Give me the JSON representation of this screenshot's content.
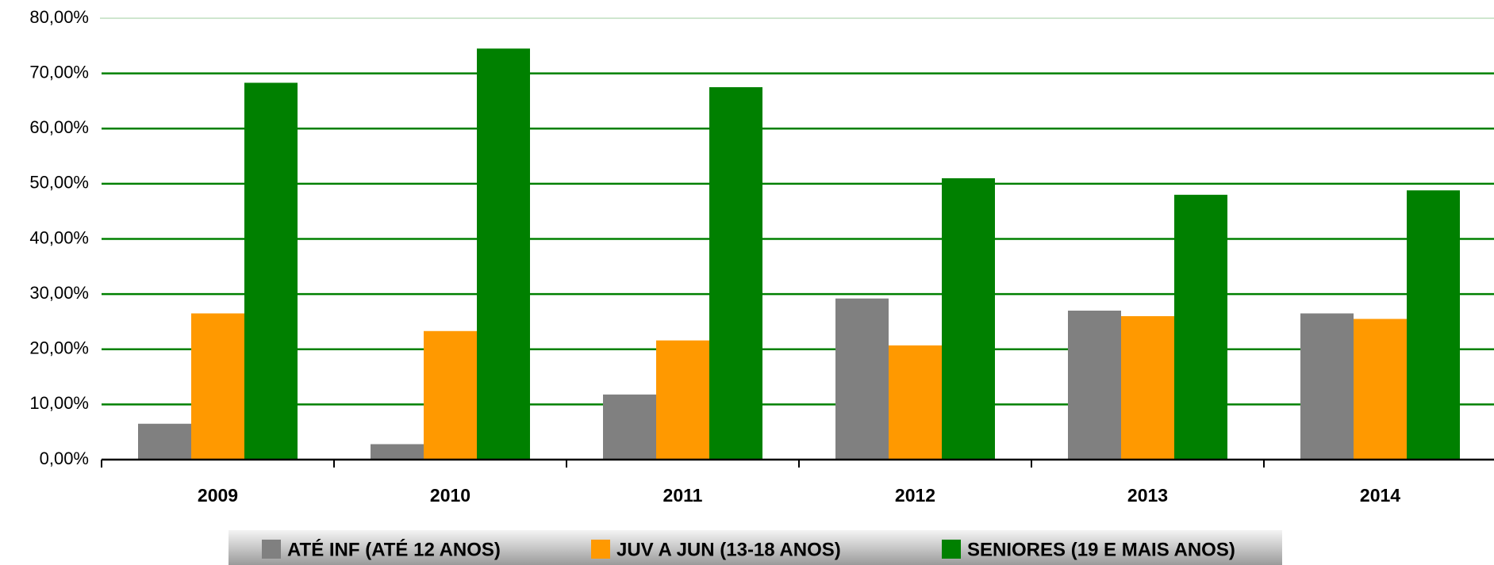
{
  "chart_data": {
    "type": "bar",
    "categories": [
      "2009",
      "2010",
      "2011",
      "2012",
      "2013",
      "2014"
    ],
    "series": [
      {
        "name": "ATÉ INF (ATÉ 12 ANOS)",
        "color": "#808080",
        "values": [
          6.5,
          2.8,
          11.8,
          29.2,
          27.0,
          26.5
        ]
      },
      {
        "name": "JUV A JUN (13-18 ANOS)",
        "color": "#ff9900",
        "values": [
          26.5,
          23.3,
          21.6,
          20.7,
          26.0,
          25.5
        ]
      },
      {
        "name": "SENIORES (19 E MAIS ANOS)",
        "color": "#008000",
        "values": [
          68.3,
          74.5,
          67.5,
          51.0,
          48.0,
          48.8
        ]
      }
    ],
    "ylim": [
      0,
      80
    ],
    "yticks": [
      {
        "value": 0,
        "label": "0,00%"
      },
      {
        "value": 10,
        "label": "10,00%"
      },
      {
        "value": 20,
        "label": "20,00%"
      },
      {
        "value": 30,
        "label": "30,00%"
      },
      {
        "value": 40,
        "label": "40,00%"
      },
      {
        "value": 50,
        "label": "50,00%"
      },
      {
        "value": 60,
        "label": "60,00%"
      },
      {
        "value": 70,
        "label": "70,00%"
      },
      {
        "value": 80,
        "label": "80,00%"
      }
    ],
    "grid": true,
    "legend": "bottom"
  }
}
